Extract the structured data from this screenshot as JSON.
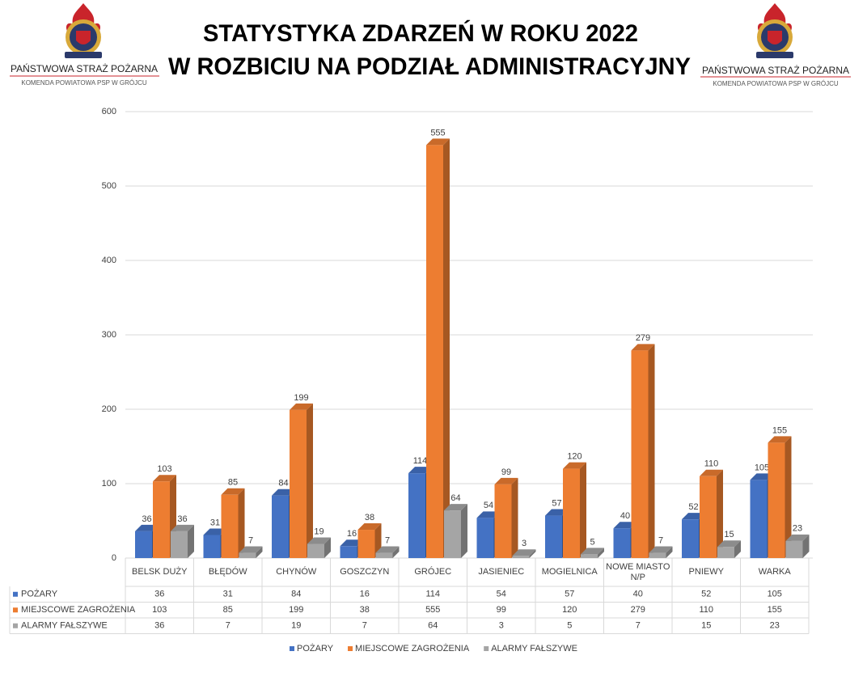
{
  "header": {
    "logo_text": "PAŃSTWOWA STRAŻ POŻARNA",
    "logo_subtitle": "KOMENDA POWIATOWA PSP W GRÓJCU"
  },
  "chart_data": {
    "type": "bar3d",
    "title": [
      "STATYSTYKA ZDARZEŃ W ROKU 2022",
      "W ROZBICIU NA PODZIAŁ ADMINISTRACYJNY"
    ],
    "categories": [
      "BELSK DUŻY",
      "BŁĘDÓW",
      "CHYNÓW",
      "GOSZCZYN",
      "GRÓJEC",
      "JASIENIEC",
      "MOGIELNICA",
      "NOWE MIASTO N/P",
      "PNIEWY",
      "WARKA"
    ],
    "series": [
      {
        "name": "POŻARY",
        "color": "#4472c4",
        "values": [
          36,
          31,
          84,
          16,
          114,
          54,
          57,
          40,
          52,
          105
        ]
      },
      {
        "name": "MIEJSCOWE ZAGROŻENIA",
        "color": "#ed7d31",
        "values": [
          103,
          85,
          199,
          38,
          555,
          99,
          120,
          279,
          110,
          155
        ]
      },
      {
        "name": "ALARMY FAŁSZYWE",
        "color": "#a5a5a5",
        "values": [
          36,
          7,
          19,
          7,
          64,
          3,
          5,
          7,
          15,
          23
        ]
      }
    ],
    "ylim": [
      0,
      600
    ],
    "yticks": [
      0,
      100,
      200,
      300,
      400,
      500,
      600
    ],
    "grid": true,
    "legend": "bottom",
    "data_table": true
  }
}
